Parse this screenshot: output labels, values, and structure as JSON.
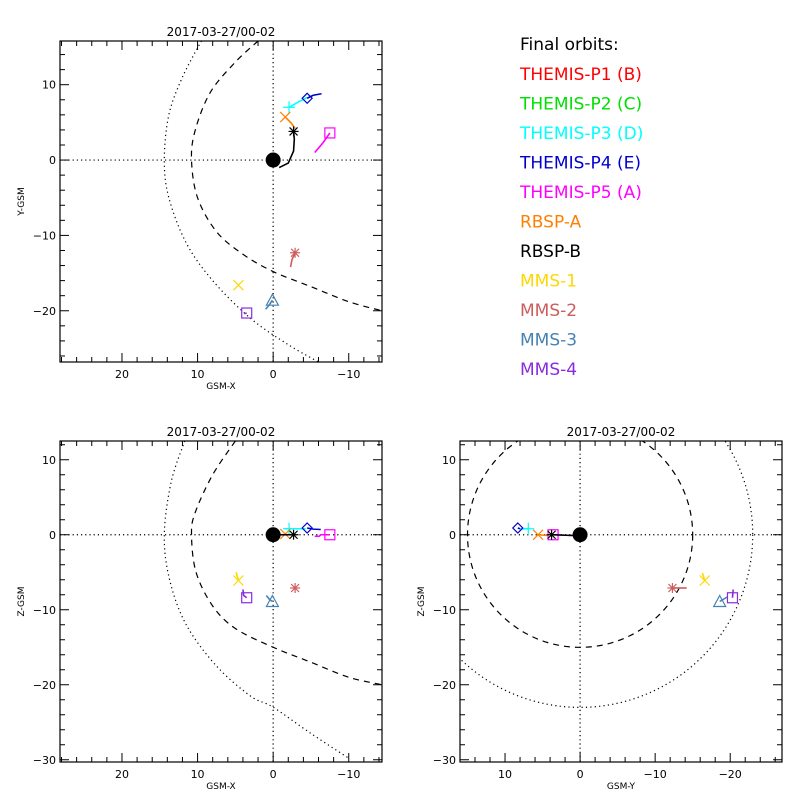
{
  "legend": {
    "title": "Final orbits:",
    "items": [
      {
        "label": "THEMIS-P1 (B)",
        "color": "#ff0000"
      },
      {
        "label": "THEMIS-P2 (C)",
        "color": "#00e000"
      },
      {
        "label": "THEMIS-P3 (D)",
        "color": "#00ffff"
      },
      {
        "label": "THEMIS-P4 (E)",
        "color": "#0000cd"
      },
      {
        "label": "THEMIS-P5 (A)",
        "color": "#ff00ff"
      },
      {
        "label": "RBSP-A",
        "color": "#ff8000"
      },
      {
        "label": "RBSP-B",
        "color": "#000000"
      },
      {
        "label": "MMS-1",
        "color": "#ffd700"
      },
      {
        "label": "MMS-2",
        "color": "#cd5c5c"
      },
      {
        "label": "MMS-3",
        "color": "#4682b4"
      },
      {
        "label": "MMS-4",
        "color": "#8a2be2"
      }
    ]
  },
  "chart_data": [
    {
      "type": "scatter",
      "id": "xy",
      "title": "2017-03-27/00-02",
      "xlabel": "GSM-X",
      "ylabel": "Y-GSM",
      "xlim": [
        28.2,
        -14.4
      ],
      "ylim": [
        15.8,
        -26.8
      ],
      "xticks": [
        20,
        10,
        0,
        -10
      ],
      "yticks": [
        -20,
        -10,
        0,
        10
      ],
      "grid": "dotted axes at 0",
      "boundaries": [
        {
          "name": "bow-shock",
          "style": "dotted",
          "points": [
            [
              9.5,
              15.8
            ],
            [
              12,
              11
            ],
            [
              13.8,
              6
            ],
            [
              14.4,
              0
            ],
            [
              13.8,
              -5
            ],
            [
              11.5,
              -11
            ],
            [
              8,
              -16
            ],
            [
              3,
              -21
            ],
            [
              -2,
              -24.5
            ],
            [
              -6,
              -26.8
            ]
          ]
        },
        {
          "name": "magnetopause",
          "style": "dashed",
          "points": [
            [
              2,
              15.8
            ],
            [
              5,
              13
            ],
            [
              8.3,
              9
            ],
            [
              10.3,
              4
            ],
            [
              10.8,
              0
            ],
            [
              10,
              -5
            ],
            [
              7.5,
              -9.5
            ],
            [
              4,
              -12.5
            ],
            [
              0,
              -14.8
            ],
            [
              -5,
              -16.8
            ],
            [
              -10,
              -18.8
            ],
            [
              -14.4,
              -20
            ]
          ]
        }
      ],
      "spacecraft": [
        {
          "name": "THEMIS-P3",
          "marker": "plus",
          "color": "#00ffff",
          "pos": [
            -2.1,
            7.0
          ],
          "trail": [
            [
              -2.1,
              7.0
            ],
            [
              -3.3,
              7.7
            ],
            [
              -4.5,
              8.3
            ]
          ]
        },
        {
          "name": "THEMIS-P4",
          "marker": "diamond",
          "color": "#0000cd",
          "pos": [
            -4.5,
            8.2
          ],
          "trail": [
            [
              -4.5,
              8.2
            ],
            [
              -5.3,
              8.6
            ],
            [
              -6.4,
              8.8
            ]
          ]
        },
        {
          "name": "THEMIS-P5",
          "marker": "square",
          "color": "#ff00ff",
          "pos": [
            -7.5,
            3.6
          ],
          "trail": [
            [
              -5.5,
              1.0
            ],
            [
              -6.6,
              2.3
            ],
            [
              -7.5,
              3.6
            ]
          ]
        },
        {
          "name": "RBSP-A",
          "marker": "x",
          "color": "#ff8000",
          "pos": [
            -1.6,
            5.7
          ],
          "trail": [
            [
              -1.6,
              5.7
            ],
            [
              -2.4,
              4.9
            ],
            [
              -2.9,
              4.2
            ]
          ]
        },
        {
          "name": "RBSP-B",
          "marker": "asterisk",
          "color": "#000000",
          "pos": [
            -2.7,
            3.8
          ],
          "trail": [
            [
              -0.8,
              -1.0
            ],
            [
              -2.0,
              -0.4
            ],
            [
              -2.7,
              1.2
            ],
            [
              -2.8,
              2.8
            ],
            [
              -2.7,
              3.8
            ]
          ]
        },
        {
          "name": "MMS-1",
          "marker": "x",
          "color": "#ffd700",
          "pos": [
            4.6,
            -16.6
          ],
          "trail": []
        },
        {
          "name": "MMS-2",
          "marker": "asterisk",
          "color": "#cd5c5c",
          "pos": [
            -2.9,
            -12.3
          ],
          "trail": [
            [
              -2.3,
              -14.2
            ],
            [
              -2.5,
              -13.2
            ],
            [
              -2.9,
              -12.3
            ]
          ]
        },
        {
          "name": "MMS-3",
          "marker": "triangle",
          "color": "#4682b4",
          "pos": [
            0.1,
            -18.6
          ],
          "trail": [
            [
              1.0,
              -19.8
            ],
            [
              0.5,
              -19.2
            ],
            [
              0.1,
              -18.6
            ]
          ]
        },
        {
          "name": "MMS-4",
          "marker": "square",
          "color": "#8a2be2",
          "pos": [
            3.5,
            -20.3
          ],
          "trail": [
            [
              3.8,
              -20.4
            ],
            [
              3.5,
              -20.3
            ]
          ]
        }
      ]
    },
    {
      "type": "scatter",
      "id": "xz",
      "title": "2017-03-27/00-02",
      "xlabel": "GSM-X",
      "ylabel": "Z-GSM",
      "xlim": [
        28.2,
        -14.4
      ],
      "ylim": [
        12.5,
        -30.3
      ],
      "xticks": [
        20,
        10,
        0,
        -10
      ],
      "yticks": [
        10,
        0,
        -10,
        -20,
        -30
      ],
      "grid": "dotted axes at 0",
      "boundaries": [
        {
          "name": "bow-shock",
          "style": "dotted",
          "points": [
            [
              11.7,
              12.5
            ],
            [
              13.5,
              7
            ],
            [
              14.4,
              0
            ],
            [
              13.7,
              -6
            ],
            [
              11.5,
              -12
            ],
            [
              7.5,
              -17.5
            ],
            [
              3,
              -21.5
            ],
            [
              0,
              -23
            ],
            [
              -5,
              -26.5
            ],
            [
              -10,
              -29.8
            ]
          ]
        },
        {
          "name": "magnetopause",
          "style": "dashed",
          "points": [
            [
              5,
              12.5
            ],
            [
              8,
              8
            ],
            [
              10.3,
              3
            ],
            [
              10.8,
              0
            ],
            [
              10.2,
              -5
            ],
            [
              8,
              -9.5
            ],
            [
              5,
              -12.5
            ],
            [
              0,
              -15
            ],
            [
              -5,
              -17
            ],
            [
              -10,
              -19
            ],
            [
              -14.4,
              -20
            ]
          ]
        }
      ],
      "spacecraft": [
        {
          "name": "THEMIS-P3",
          "marker": "plus",
          "color": "#00ffff",
          "pos": [
            -2.1,
            0.8
          ],
          "trail": [
            [
              -1.5,
              0.8
            ],
            [
              -3.0,
              0.8
            ],
            [
              -4.3,
              0.8
            ]
          ]
        },
        {
          "name": "THEMIS-P4",
          "marker": "diamond",
          "color": "#0000cd",
          "pos": [
            -4.5,
            0.9
          ],
          "trail": [
            [
              -4.5,
              0.9
            ],
            [
              -5.3,
              0.75
            ],
            [
              -6.3,
              0.7
            ]
          ]
        },
        {
          "name": "THEMIS-P5",
          "marker": "square",
          "color": "#ff00ff",
          "pos": [
            -7.5,
            0.0
          ],
          "trail": [
            [
              -5.5,
              -0.2
            ],
            [
              -6.1,
              -0.2
            ],
            [
              -6.3,
              0.0
            ],
            [
              -7.5,
              0.0
            ]
          ]
        },
        {
          "name": "RBSP-A",
          "marker": "x",
          "color": "#ff8000",
          "pos": [
            -1.6,
            0.1
          ],
          "trail": []
        },
        {
          "name": "RBSP-B",
          "marker": "asterisk",
          "color": "#000000",
          "pos": [
            -2.7,
            0.0
          ],
          "trail": [
            [
              -0.8,
              0.0
            ],
            [
              -2.7,
              0.0
            ]
          ]
        },
        {
          "name": "MMS-1",
          "marker": "x",
          "color": "#ffd700",
          "pos": [
            4.6,
            -6.1
          ],
          "trail": [
            [
              4.9,
              -5.0
            ],
            [
              4.6,
              -6.1
            ]
          ]
        },
        {
          "name": "MMS-2",
          "marker": "asterisk",
          "color": "#cd5c5c",
          "pos": [
            -2.9,
            -7.1
          ],
          "trail": []
        },
        {
          "name": "MMS-3",
          "marker": "triangle",
          "color": "#4682b4",
          "pos": [
            0.1,
            -8.9
          ],
          "trail": [
            [
              0.9,
              -8.1
            ],
            [
              0.5,
              -8.6
            ],
            [
              0.1,
              -8.9
            ]
          ]
        },
        {
          "name": "MMS-4",
          "marker": "square",
          "color": "#8a2be2",
          "pos": [
            3.5,
            -8.4
          ],
          "trail": [
            [
              4.0,
              -7.3
            ],
            [
              3.9,
              -8.1
            ],
            [
              3.5,
              -8.4
            ]
          ]
        }
      ]
    },
    {
      "type": "scatter",
      "id": "yz",
      "title": "2017-03-27/00-02",
      "xlabel": "GSM-Y",
      "ylabel": "Z-GSM",
      "xlim": [
        16.0,
        -26.9
      ],
      "ylim": [
        12.5,
        -30.3
      ],
      "xticks": [
        10,
        0,
        -10,
        -20
      ],
      "yticks": [
        10,
        0,
        -10,
        -20,
        -30
      ],
      "grid": "dotted axes at 0",
      "boundaries": [
        {
          "name": "bow-shock",
          "style": "dotted",
          "circle": {
            "cx": 0,
            "cy": 0,
            "r": 23
          }
        },
        {
          "name": "magnetopause",
          "style": "dashed",
          "circle": {
            "cx": 0,
            "cy": 0,
            "r": 15
          }
        }
      ],
      "spacecraft": [
        {
          "name": "THEMIS-P3",
          "marker": "plus",
          "color": "#00ffff",
          "pos": [
            6.9,
            0.8
          ],
          "trail": [
            [
              6.9,
              0.8
            ],
            [
              8.0,
              0.8
            ]
          ]
        },
        {
          "name": "THEMIS-P4",
          "marker": "diamond",
          "color": "#0000cd",
          "pos": [
            8.3,
            0.9
          ],
          "trail": [
            [
              8.3,
              0.9
            ],
            [
              8.0,
              0.8
            ]
          ]
        },
        {
          "name": "THEMIS-P5",
          "marker": "square",
          "color": "#ff00ff",
          "pos": [
            3.6,
            0.0
          ],
          "trail": [
            [
              3.6,
              0.0
            ],
            [
              1.0,
              -0.1
            ]
          ]
        },
        {
          "name": "RBSP-A",
          "marker": "x",
          "color": "#ff8000",
          "pos": [
            5.6,
            0.0
          ],
          "trail": [
            [
              5.6,
              0.0
            ],
            [
              4.3,
              -0.1
            ]
          ]
        },
        {
          "name": "RBSP-B",
          "marker": "asterisk",
          "color": "#000000",
          "pos": [
            3.8,
            0.0
          ],
          "trail": [
            [
              3.8,
              0.0
            ],
            [
              0.9,
              -0.1
            ]
          ]
        },
        {
          "name": "MMS-1",
          "marker": "x",
          "color": "#ffd700",
          "pos": [
            -16.6,
            -6.1
          ],
          "trail": [
            [
              -16.3,
              -5.1
            ],
            [
              -16.6,
              -6.1
            ]
          ]
        },
        {
          "name": "MMS-2",
          "marker": "asterisk",
          "color": "#cd5c5c",
          "pos": [
            -12.3,
            -7.1
          ],
          "trail": [
            [
              -12.3,
              -7.1
            ],
            [
              -14.2,
              -7.1
            ]
          ]
        },
        {
          "name": "MMS-3",
          "marker": "triangle",
          "color": "#4682b4",
          "pos": [
            -18.6,
            -8.9
          ],
          "trail": [
            [
              -18.6,
              -8.9
            ],
            [
              -19.6,
              -8.3
            ]
          ]
        },
        {
          "name": "MMS-4",
          "marker": "square",
          "color": "#8a2be2",
          "pos": [
            -20.3,
            -8.4
          ],
          "trail": [
            [
              -20.3,
              -8.4
            ],
            [
              -20.4,
              -7.3
            ]
          ]
        }
      ]
    }
  ]
}
